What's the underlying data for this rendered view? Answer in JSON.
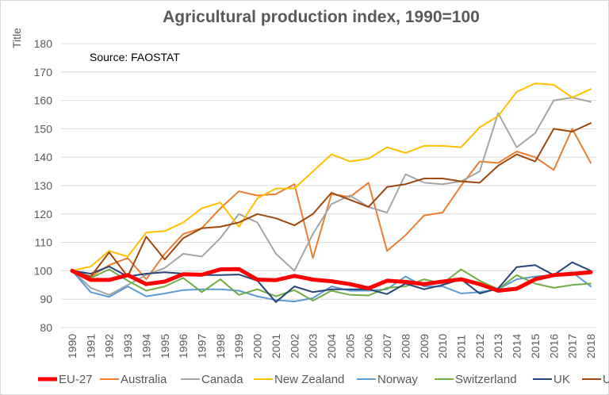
{
  "chart_data": {
    "type": "line",
    "title": "Agricultural production index, 1990=100",
    "ylabel": "Title",
    "xlabel": "",
    "annotation": "Source:  FAOSTAT",
    "ylim": [
      80,
      180
    ],
    "yticks": [
      80,
      90,
      100,
      110,
      120,
      130,
      140,
      150,
      160,
      170,
      180
    ],
    "grid": true,
    "legend_position": "bottom",
    "x": [
      "1990",
      "1991",
      "1992",
      "1993",
      "1994",
      "1995",
      "1996",
      "1997",
      "1998",
      "1999",
      "2000",
      "2001",
      "2002",
      "2003",
      "2004",
      "2005",
      "2006",
      "2007",
      "2008",
      "2009",
      "2010",
      "2011",
      "2012",
      "2013",
      "2014",
      "2015",
      "2016",
      "2017",
      "2018"
    ],
    "series": [
      {
        "name": "EU-27",
        "color": "#ff0000",
        "width": 5,
        "values": [
          100,
          96.8,
          96.8,
          98.5,
          95.3,
          96.2,
          98.8,
          98.6,
          100.5,
          100.6,
          96.9,
          96.7,
          98.2,
          96.9,
          96.3,
          95.3,
          93.8,
          96.5,
          96.1,
          95.3,
          96.2,
          97.0,
          95.3,
          93.0,
          93.7,
          97.0,
          98.5,
          98.9,
          99.5
        ]
      },
      {
        "name": "Australia",
        "color": "#ed7d31",
        "width": 2,
        "values": [
          100,
          98,
          102,
          104.5,
          97,
          106,
          113,
          115,
          122,
          128,
          126.5,
          127,
          130.5,
          104.5,
          127,
          126,
          131,
          107,
          112.5,
          119.5,
          120.5,
          130,
          138.5,
          138,
          142,
          140,
          135.5,
          150,
          138
        ]
      },
      {
        "name": "Canada",
        "color": "#a5a5a5",
        "width": 2,
        "values": [
          100,
          94,
          91.5,
          95,
          98.5,
          101,
          106,
          105,
          111.5,
          120,
          117,
          106,
          100,
          113,
          123.5,
          126.5,
          122.5,
          120.5,
          134,
          131,
          130.5,
          131.5,
          135,
          155.5,
          143.5,
          148.5,
          160,
          161,
          159.5
        ]
      },
      {
        "name": "New Zealand",
        "color": "#ffc000",
        "width": 2,
        "values": [
          100,
          101.5,
          107,
          105,
          113.5,
          114,
          117,
          122,
          124,
          115.5,
          125.5,
          129,
          129,
          135,
          141,
          138.5,
          139.5,
          143.5,
          141.5,
          144,
          144,
          143.5,
          150.5,
          154.5,
          163,
          166,
          165.5,
          161,
          164
        ]
      },
      {
        "name": "Norway",
        "color": "#5b9bd5",
        "width": 2,
        "values": [
          100,
          92.5,
          90.8,
          94.5,
          91,
          92,
          93.2,
          93.5,
          93.5,
          93,
          91,
          89.7,
          89.2,
          90.4,
          94.5,
          93,
          93,
          93.5,
          98,
          94.5,
          94.5,
          92,
          92.5,
          93.5,
          97,
          98,
          98.5,
          99.5,
          94.5
        ]
      },
      {
        "name": "Switzerland",
        "color": "#70ad47",
        "width": 2,
        "values": [
          100,
          97.5,
          100.5,
          96.5,
          93,
          94.5,
          97.5,
          92.5,
          97,
          91.5,
          93.5,
          91,
          93.2,
          89.5,
          93,
          91.5,
          91.3,
          94,
          94.5,
          97,
          95.5,
          100.5,
          96.5,
          93.5,
          98.5,
          95.5,
          94,
          95,
          95.5
        ]
      },
      {
        "name": "UK",
        "color": "#264478",
        "width": 2,
        "values": [
          100,
          99,
          101.5,
          98,
          99,
          99.5,
          99,
          98.5,
          98.5,
          98.7,
          96.5,
          89,
          94.5,
          92.5,
          93.5,
          93.5,
          93.5,
          91.8,
          95.5,
          93.5,
          95,
          97,
          92,
          93.8,
          101.3,
          102,
          98.5,
          103,
          100
        ]
      },
      {
        "name": "US",
        "color": "#9e480e",
        "width": 2,
        "values": [
          100,
          98,
          106.5,
          98,
          112,
          104,
          111.5,
          115,
          115.5,
          117,
          120,
          118.5,
          116,
          120,
          127.5,
          125,
          122.5,
          129.5,
          130.5,
          132.5,
          132.5,
          131.5,
          131,
          137,
          141,
          138.5,
          150,
          149,
          152
        ]
      }
    ]
  }
}
